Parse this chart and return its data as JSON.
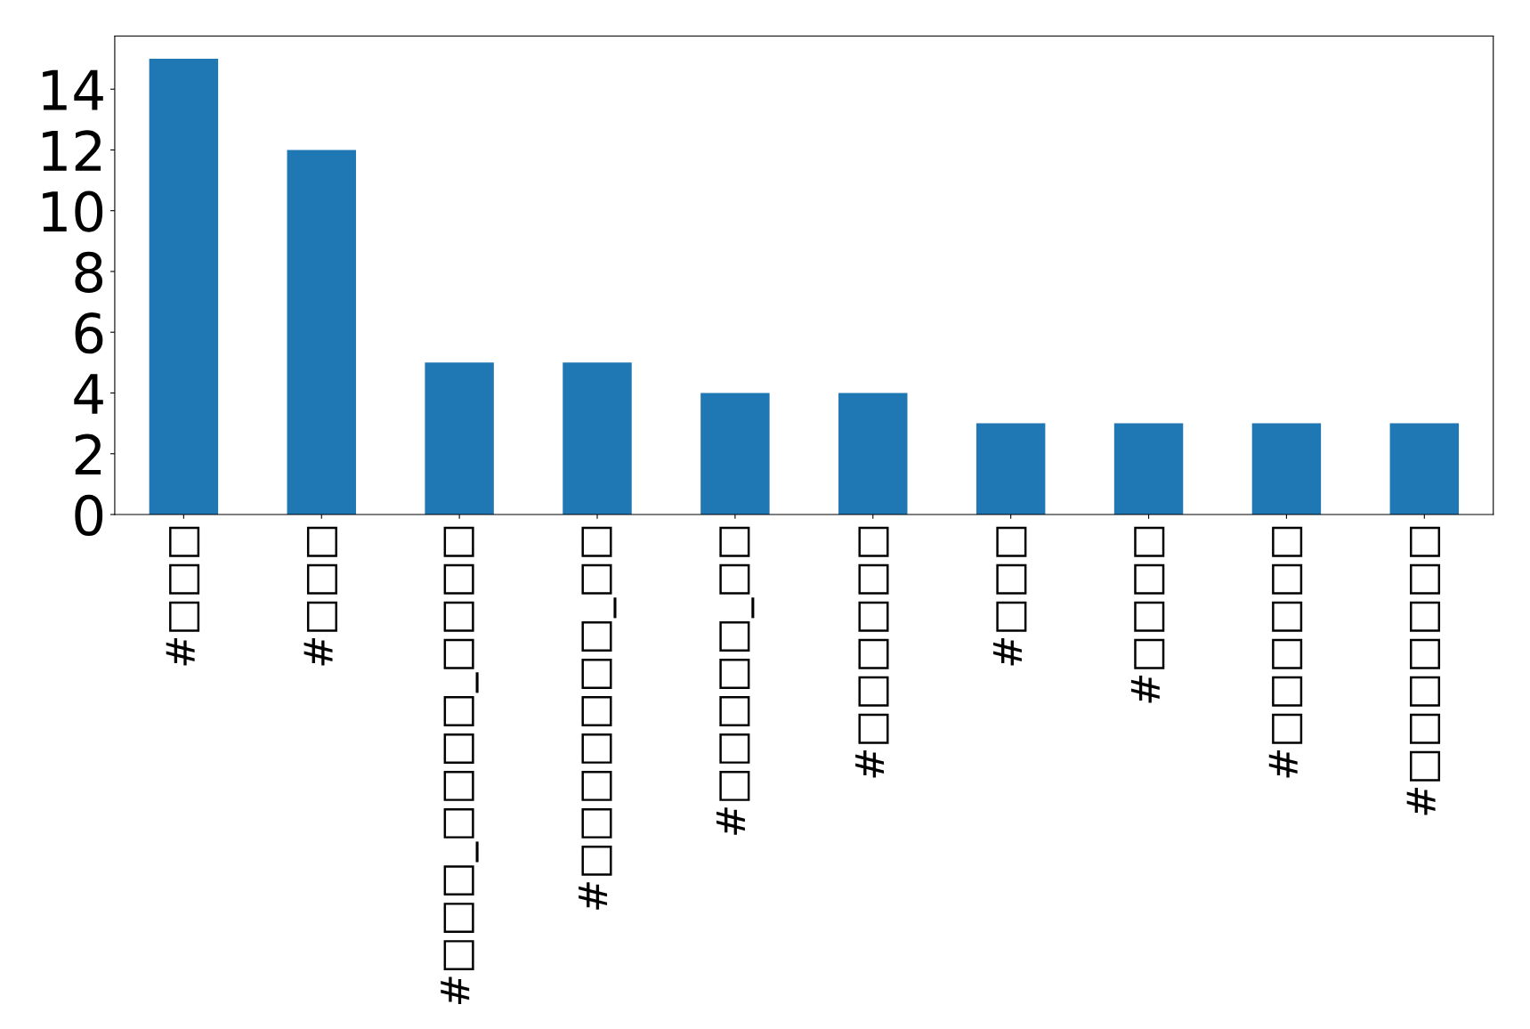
{
  "chart_data": {
    "type": "bar",
    "categories": [
      "#□□□",
      "#□□□",
      "#□□□_□□□□_□□□□",
      "#□□□□□□□_□□",
      "#□□□□□_□□",
      "#□□□□□□",
      "#□□□",
      "#□□□□",
      "#□□□□□□",
      "#□□□□□□□"
    ],
    "values": [
      15,
      12,
      5,
      5,
      4,
      4,
      3,
      3,
      3,
      3
    ],
    "color": "#1f77b4",
    "ylim": [
      0,
      15.75
    ],
    "yticks": [
      0,
      2,
      4,
      6,
      8,
      10,
      12,
      14
    ],
    "grid": false,
    "legend": false
  }
}
